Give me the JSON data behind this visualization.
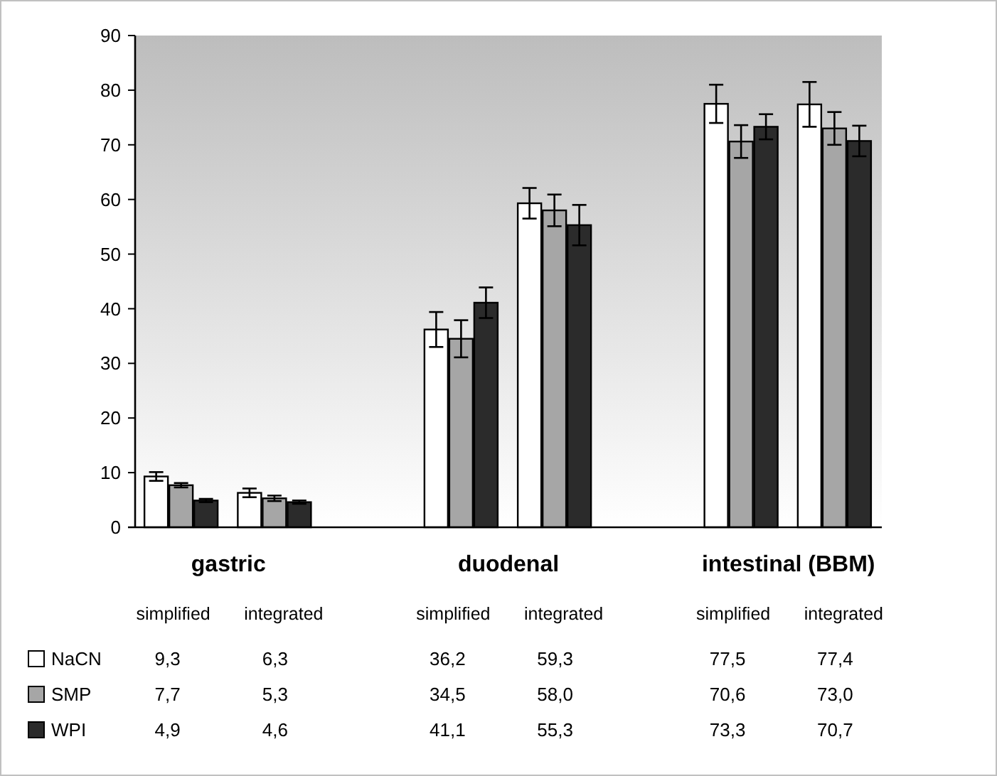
{
  "chart_data": {
    "type": "bar",
    "categories": [
      "simplified",
      "integrated",
      "simplified",
      "integrated",
      "simplified",
      "integrated"
    ],
    "ylim": [
      0,
      90
    ],
    "yticks": [
      0,
      10,
      20,
      30,
      40,
      50,
      60,
      70,
      80,
      90
    ],
    "grid": false,
    "legend": "bottom",
    "annotations": [
      "gastric",
      "duodenal",
      "intestinal (BBM)"
    ],
    "series": [
      {
        "name": "NaCN",
        "color": "#ffffff",
        "values": [
          9.3,
          6.3,
          36.2,
          59.3,
          77.5,
          77.4
        ],
        "errors": [
          0.8,
          0.8,
          3.2,
          2.8,
          3.5,
          4.1
        ],
        "value_labels": [
          "9,3",
          "6,3",
          "36,2",
          "59,3",
          "77,5",
          "77,4"
        ]
      },
      {
        "name": "SMP",
        "color": "#a6a6a6",
        "values": [
          7.7,
          5.3,
          34.5,
          58.0,
          70.6,
          73.0
        ],
        "errors": [
          0.4,
          0.5,
          3.4,
          2.9,
          3.0,
          3.0
        ],
        "value_labels": [
          "7,7",
          "5,3",
          "34,5",
          "58,0",
          "70,6",
          "73,0"
        ]
      },
      {
        "name": "WPI",
        "color": "#2b2b2b",
        "values": [
          4.9,
          4.6,
          41.1,
          55.3,
          73.3,
          70.7
        ],
        "errors": [
          0.3,
          0.3,
          2.8,
          3.7,
          2.3,
          2.8
        ],
        "value_labels": [
          "4,9",
          "4,6",
          "41,1",
          "55,3",
          "73,3",
          "70,7"
        ]
      }
    ]
  }
}
